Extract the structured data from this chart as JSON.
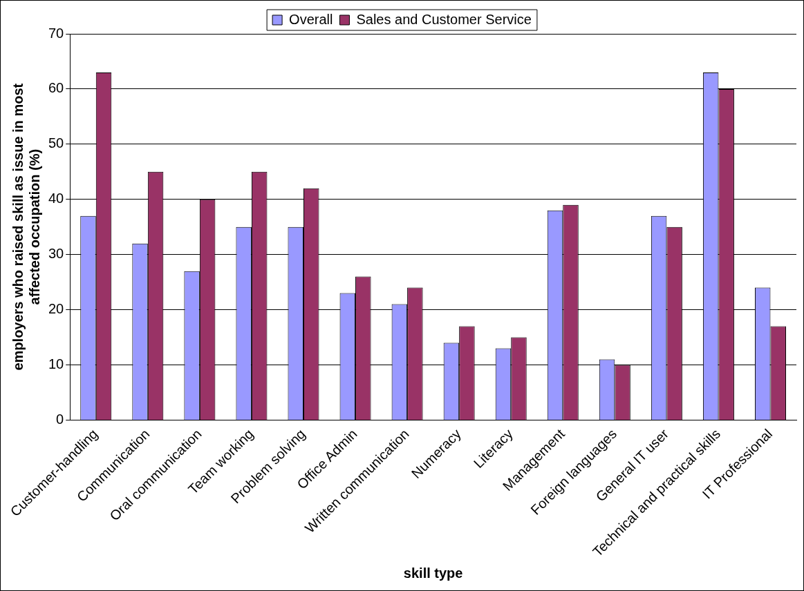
{
  "chart_data": {
    "type": "bar",
    "xlabel": "skill type",
    "ylabel": "employers who raised skill as issue in most affected occupation (%)",
    "categories": [
      "Customer-handling",
      "Communication",
      "Oral communication",
      "Team working",
      "Problem solving",
      "Office Admin",
      "Written communication",
      "Numeracy",
      "Literacy",
      "Management",
      "Foreign languages",
      "General IT user",
      "Technical and practical skills",
      "IT Professional"
    ],
    "series": [
      {
        "name": "Overall",
        "color": "#9999ff",
        "values": [
          37,
          32,
          27,
          35,
          35,
          23,
          21,
          14,
          13,
          38,
          11,
          37,
          63,
          24
        ]
      },
      {
        "name": "Sales and Customer Service",
        "color": "#993366",
        "values": [
          63,
          45,
          40,
          45,
          42,
          26,
          24,
          17,
          15,
          39,
          10,
          35,
          60,
          17
        ]
      }
    ],
    "ylim": [
      0,
      70
    ],
    "yticks": [
      0,
      10,
      20,
      30,
      40,
      50,
      60,
      70
    ],
    "grid": "y",
    "legend": "top"
  }
}
